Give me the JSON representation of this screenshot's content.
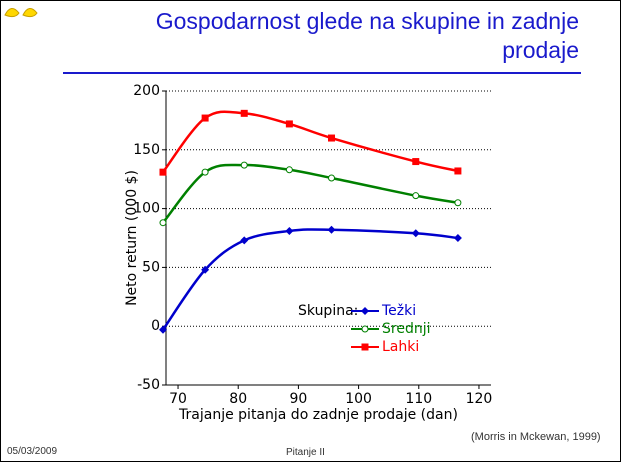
{
  "title": "Gospodarnost glede na skupine in zadnje prodaje",
  "chart_data": {
    "type": "line",
    "x_label": "Trajanje pitanja do zadnje prodaje (dan)",
    "y_label": "Neto return (000 $)",
    "legend_title": "Skupina:",
    "x": [
      67.5,
      74.5,
      81,
      88.5,
      95.5,
      109.5,
      116.5
    ],
    "series": [
      {
        "name": "Težki",
        "color": "#0000cc",
        "marker": "diamond",
        "values": [
          -3,
          48,
          73,
          81,
          82,
          79,
          75
        ]
      },
      {
        "name": "Srednji",
        "color": "#008000",
        "marker": "circle",
        "values": [
          88,
          131,
          137,
          133,
          126,
          111,
          105
        ]
      },
      {
        "name": "Lahki",
        "color": "#ff0000",
        "marker": "square",
        "values": [
          131,
          177,
          181,
          172,
          160,
          140,
          132
        ]
      }
    ],
    "xlim": [
      68,
      122
    ],
    "xticks": [
      70,
      80,
      90,
      100,
      110,
      120
    ],
    "ylim": [
      -50,
      200
    ],
    "yticks": [
      -50,
      0,
      50,
      100,
      150,
      200
    ],
    "grid": true
  },
  "footer": {
    "date": "05/03/2009",
    "center": "Pitanje II",
    "source": "(Morris in Mckewan, 1999)"
  }
}
